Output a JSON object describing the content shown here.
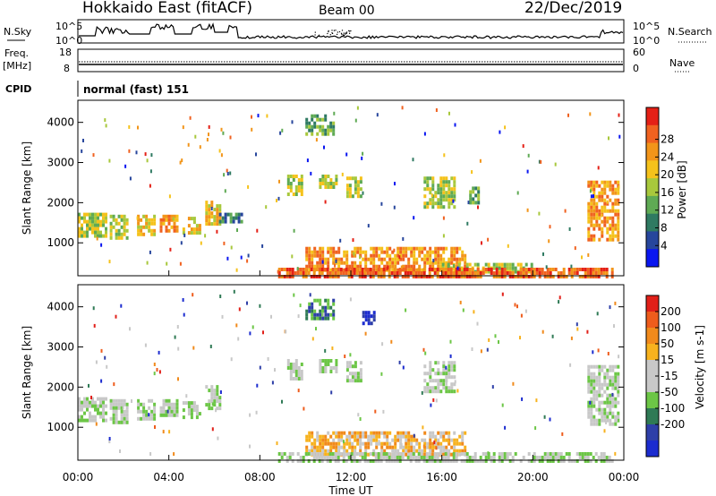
{
  "header": {
    "title": "Hokkaido East (fitACF)",
    "beam": "Beam 00",
    "date": "22/Dec/2019"
  },
  "summary": {
    "left_labels": {
      "nsky": "N.Sky",
      "freq_line1": "Freq.",
      "freq_line2": "[MHz]",
      "cpid": "CPID"
    },
    "right_labels": {
      "nsearch": "N.Search",
      "nave": "Nave"
    },
    "noise_ticks_left": [
      "10^5",
      "10^0"
    ],
    "noise_ticks_right": [
      "10^5",
      "10^0"
    ],
    "freq_ticks": [
      "18",
      "8"
    ],
    "nave_ticks": [
      "60",
      "0"
    ],
    "cpid_text": "normal (fast) 151"
  },
  "colors": {
    "power_scale": [
      "#0a16f0",
      "#27469c",
      "#2f7a62",
      "#5faa54",
      "#a8c83c",
      "#f5c21b",
      "#f2951a",
      "#f06220",
      "#e42016"
    ],
    "velocity_scale": [
      "#1c2ccf",
      "#2e3fa8",
      "#2f7a55",
      "#6cc646",
      "#c8c8c8",
      "#c8c8c8",
      "#f7b21e",
      "#f18a1c",
      "#ee5c1c",
      "#e12019"
    ]
  },
  "chart_data": [
    {
      "type": "heatmap",
      "panel": "power",
      "ylabel": "Slant Range [km]",
      "yticks": [
        "1000",
        "2000",
        "3000",
        "4000"
      ],
      "ylim": [
        180,
        4550
      ],
      "xlim": [
        0,
        24
      ],
      "colorbar_label": "Power [dB]",
      "colorbar_ticks": [
        "4",
        "8",
        "12",
        "16",
        "20",
        "24",
        "28"
      ],
      "blobs": [
        {
          "t0": 0.0,
          "t1": 1.2,
          "r0": 1150,
          "r1": 1750,
          "level": 4
        },
        {
          "t0": 1.4,
          "t1": 2.2,
          "r0": 1150,
          "r1": 1700,
          "level": 4
        },
        {
          "t0": 2.6,
          "t1": 3.4,
          "r0": 1200,
          "r1": 1700,
          "level": 5
        },
        {
          "t0": 3.6,
          "t1": 4.4,
          "r0": 1300,
          "r1": 1700,
          "level": 6
        },
        {
          "t0": 4.6,
          "t1": 5.4,
          "r0": 1250,
          "r1": 1650,
          "level": 5
        },
        {
          "t0": 5.6,
          "t1": 6.2,
          "r0": 1450,
          "r1": 2050,
          "level": 5
        },
        {
          "t0": 6.2,
          "t1": 7.2,
          "r0": 1550,
          "r1": 1750,
          "level": 2
        },
        {
          "t0": 9.2,
          "t1": 9.8,
          "r0": 2250,
          "r1": 2700,
          "level": 4
        },
        {
          "t0": 10.6,
          "t1": 11.4,
          "r0": 2350,
          "r1": 2700,
          "level": 4
        },
        {
          "t0": 11.8,
          "t1": 12.4,
          "r0": 2150,
          "r1": 2650,
          "level": 4
        },
        {
          "t0": 10.0,
          "t1": 11.2,
          "r0": 3750,
          "r1": 4200,
          "level": 3
        },
        {
          "t0": 15.2,
          "t1": 16.6,
          "r0": 1900,
          "r1": 2650,
          "level": 4
        },
        {
          "t0": 17.2,
          "t1": 17.6,
          "r0": 2000,
          "r1": 2400,
          "level": 3
        },
        {
          "t0": 22.4,
          "t1": 23.8,
          "r0": 1100,
          "r1": 2550,
          "level": 6
        },
        {
          "t0": 10.0,
          "t1": 17.0,
          "r0": 300,
          "r1": 900,
          "level": 6
        },
        {
          "t0": 16.0,
          "t1": 20.0,
          "r0": 280,
          "r1": 500,
          "level": 4
        },
        {
          "t0": 8.8,
          "t1": 23.5,
          "r0": 180,
          "r1": 380,
          "level": 7
        }
      ]
    },
    {
      "type": "heatmap",
      "panel": "velocity",
      "ylabel": "Slant Range [km]",
      "yticks": [
        "1000",
        "2000",
        "3000",
        "4000"
      ],
      "ylim": [
        180,
        4550
      ],
      "xlim": [
        0,
        24
      ],
      "colorbar_label": "Velocity [m s-1]",
      "colorbar_ticks": [
        "200",
        "100",
        "50",
        "15",
        "-15",
        "-50",
        "-100",
        "-200"
      ],
      "blobs": [
        {
          "t0": 0.0,
          "t1": 1.2,
          "r0": 1150,
          "r1": 1750,
          "level": 4
        },
        {
          "t0": 1.4,
          "t1": 2.2,
          "r0": 1150,
          "r1": 1700,
          "level": 4
        },
        {
          "t0": 2.6,
          "t1": 3.4,
          "r0": 1200,
          "r1": 1700,
          "level": 4
        },
        {
          "t0": 3.6,
          "t1": 4.4,
          "r0": 1300,
          "r1": 1700,
          "level": 4
        },
        {
          "t0": 4.6,
          "t1": 5.4,
          "r0": 1250,
          "r1": 1650,
          "level": 4
        },
        {
          "t0": 5.6,
          "t1": 6.2,
          "r0": 1450,
          "r1": 2050,
          "level": 4
        },
        {
          "t0": 9.2,
          "t1": 9.8,
          "r0": 2250,
          "r1": 2700,
          "level": 4
        },
        {
          "t0": 10.6,
          "t1": 11.4,
          "r0": 2350,
          "r1": 2700,
          "level": 4
        },
        {
          "t0": 11.8,
          "t1": 12.4,
          "r0": 2150,
          "r1": 2650,
          "level": 4
        },
        {
          "t0": 10.0,
          "t1": 11.2,
          "r0": 3750,
          "r1": 4200,
          "level": 2
        },
        {
          "t0": 12.5,
          "t1": 13.0,
          "r0": 3600,
          "r1": 3900,
          "level": 0
        },
        {
          "t0": 15.2,
          "t1": 16.6,
          "r0": 1900,
          "r1": 2650,
          "level": 4
        },
        {
          "t0": 22.4,
          "t1": 23.8,
          "r0": 1100,
          "r1": 2550,
          "level": 4
        },
        {
          "t0": 10.0,
          "t1": 17.0,
          "r0": 300,
          "r1": 900,
          "level": 6
        },
        {
          "t0": 8.8,
          "t1": 23.5,
          "r0": 180,
          "r1": 380,
          "level": 4
        }
      ]
    }
  ],
  "xaxis": {
    "ticks": [
      "00:00",
      "04:00",
      "08:00",
      "12:00",
      "16:00",
      "20:00",
      "00:00"
    ],
    "label": "Time UT"
  }
}
